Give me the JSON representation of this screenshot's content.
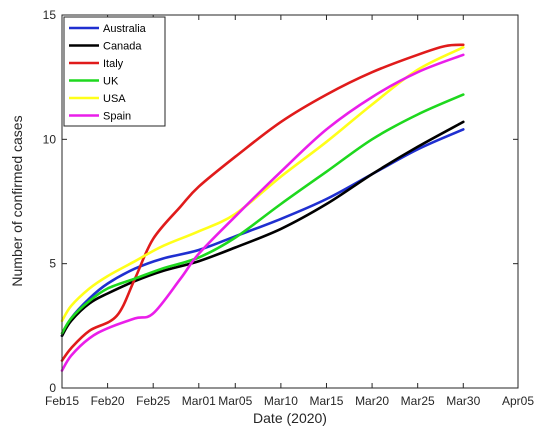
{
  "chart_data": {
    "type": "line",
    "title": "",
    "xlabel": "Date (2020)",
    "ylabel": "Number of confirmed cases",
    "x_unit": "date",
    "xlim": [
      "2020-02-15",
      "2020-04-05"
    ],
    "ylim": [
      0,
      15
    ],
    "x_ticks": [
      {
        "date": "2020-02-15",
        "label": "Feb15"
      },
      {
        "date": "2020-02-20",
        "label": "Feb20"
      },
      {
        "date": "2020-02-25",
        "label": "Feb25"
      },
      {
        "date": "2020-03-01",
        "label": "Mar01"
      },
      {
        "date": "2020-03-05",
        "label": "Mar05"
      },
      {
        "date": "2020-03-10",
        "label": "Mar10"
      },
      {
        "date": "2020-03-15",
        "label": "Mar15"
      },
      {
        "date": "2020-03-20",
        "label": "Mar20"
      },
      {
        "date": "2020-03-25",
        "label": "Mar25"
      },
      {
        "date": "2020-03-30",
        "label": "Mar30"
      },
      {
        "date": "2020-04-05",
        "label": "Apr05"
      }
    ],
    "y_ticks": [
      0,
      5,
      10,
      15
    ],
    "grid": false,
    "legend_position": "top-left",
    "series": [
      {
        "name": "Australia",
        "color": "#1f2fd0",
        "points": [
          [
            "2020-02-15",
            2.1
          ],
          [
            "2020-02-16",
            2.8
          ],
          [
            "2020-02-18",
            3.6
          ],
          [
            "2020-02-20",
            4.2
          ],
          [
            "2020-02-23",
            4.8
          ],
          [
            "2020-02-26",
            5.2
          ],
          [
            "2020-03-01",
            5.55
          ],
          [
            "2020-03-05",
            6.1
          ],
          [
            "2020-03-10",
            6.8
          ],
          [
            "2020-03-15",
            7.6
          ],
          [
            "2020-03-20",
            8.6
          ],
          [
            "2020-03-25",
            9.6
          ],
          [
            "2020-03-30",
            10.4
          ]
        ]
      },
      {
        "name": "Canada",
        "color": "#000000",
        "points": [
          [
            "2020-02-15",
            2.1
          ],
          [
            "2020-02-16",
            2.7
          ],
          [
            "2020-02-18",
            3.4
          ],
          [
            "2020-02-20",
            3.8
          ],
          [
            "2020-02-23",
            4.3
          ],
          [
            "2020-02-26",
            4.7
          ],
          [
            "2020-03-01",
            5.1
          ],
          [
            "2020-03-05",
            5.65
          ],
          [
            "2020-03-10",
            6.4
          ],
          [
            "2020-03-15",
            7.4
          ],
          [
            "2020-03-20",
            8.6
          ],
          [
            "2020-03-25",
            9.7
          ],
          [
            "2020-03-30",
            10.7
          ]
        ]
      },
      {
        "name": "Italy",
        "color": "#e01b1b",
        "points": [
          [
            "2020-02-15",
            1.1
          ],
          [
            "2020-02-16",
            1.6
          ],
          [
            "2020-02-18",
            2.3
          ],
          [
            "2020-02-21",
            2.9
          ],
          [
            "2020-02-23",
            4.4
          ],
          [
            "2020-02-25",
            6.0
          ],
          [
            "2020-02-28",
            7.3
          ],
          [
            "2020-03-01",
            8.1
          ],
          [
            "2020-03-05",
            9.3
          ],
          [
            "2020-03-10",
            10.7
          ],
          [
            "2020-03-15",
            11.8
          ],
          [
            "2020-03-20",
            12.7
          ],
          [
            "2020-03-25",
            13.4
          ],
          [
            "2020-03-28",
            13.75
          ],
          [
            "2020-03-30",
            13.8
          ]
        ]
      },
      {
        "name": "UK",
        "color": "#1ed81e",
        "points": [
          [
            "2020-02-15",
            2.2
          ],
          [
            "2020-02-16",
            2.8
          ],
          [
            "2020-02-18",
            3.5
          ],
          [
            "2020-02-20",
            4.0
          ],
          [
            "2020-02-23",
            4.4
          ],
          [
            "2020-02-26",
            4.8
          ],
          [
            "2020-03-01",
            5.25
          ],
          [
            "2020-03-05",
            6.05
          ],
          [
            "2020-03-10",
            7.4
          ],
          [
            "2020-03-15",
            8.7
          ],
          [
            "2020-03-20",
            10.0
          ],
          [
            "2020-03-25",
            11.0
          ],
          [
            "2020-03-30",
            11.8
          ]
        ]
      },
      {
        "name": "USA",
        "color": "#ffff19",
        "points": [
          [
            "2020-02-15",
            2.7
          ],
          [
            "2020-02-16",
            3.3
          ],
          [
            "2020-02-18",
            4.0
          ],
          [
            "2020-02-20",
            4.5
          ],
          [
            "2020-02-23",
            5.1
          ],
          [
            "2020-02-26",
            5.7
          ],
          [
            "2020-03-01",
            6.3
          ],
          [
            "2020-03-05",
            7.0
          ],
          [
            "2020-03-10",
            8.5
          ],
          [
            "2020-03-15",
            9.9
          ],
          [
            "2020-03-20",
            11.4
          ],
          [
            "2020-03-25",
            12.8
          ],
          [
            "2020-03-30",
            13.7
          ]
        ]
      },
      {
        "name": "Spain",
        "color": "#ea1eea",
        "points": [
          [
            "2020-02-15",
            0.7
          ],
          [
            "2020-02-16",
            1.3
          ],
          [
            "2020-02-18",
            2.0
          ],
          [
            "2020-02-20",
            2.4
          ],
          [
            "2020-02-23",
            2.8
          ],
          [
            "2020-02-25",
            3.0
          ],
          [
            "2020-02-28",
            4.4
          ],
          [
            "2020-03-01",
            5.4
          ],
          [
            "2020-03-05",
            6.9
          ],
          [
            "2020-03-10",
            8.7
          ],
          [
            "2020-03-15",
            10.4
          ],
          [
            "2020-03-20",
            11.7
          ],
          [
            "2020-03-25",
            12.7
          ],
          [
            "2020-03-30",
            13.4
          ]
        ]
      }
    ]
  }
}
